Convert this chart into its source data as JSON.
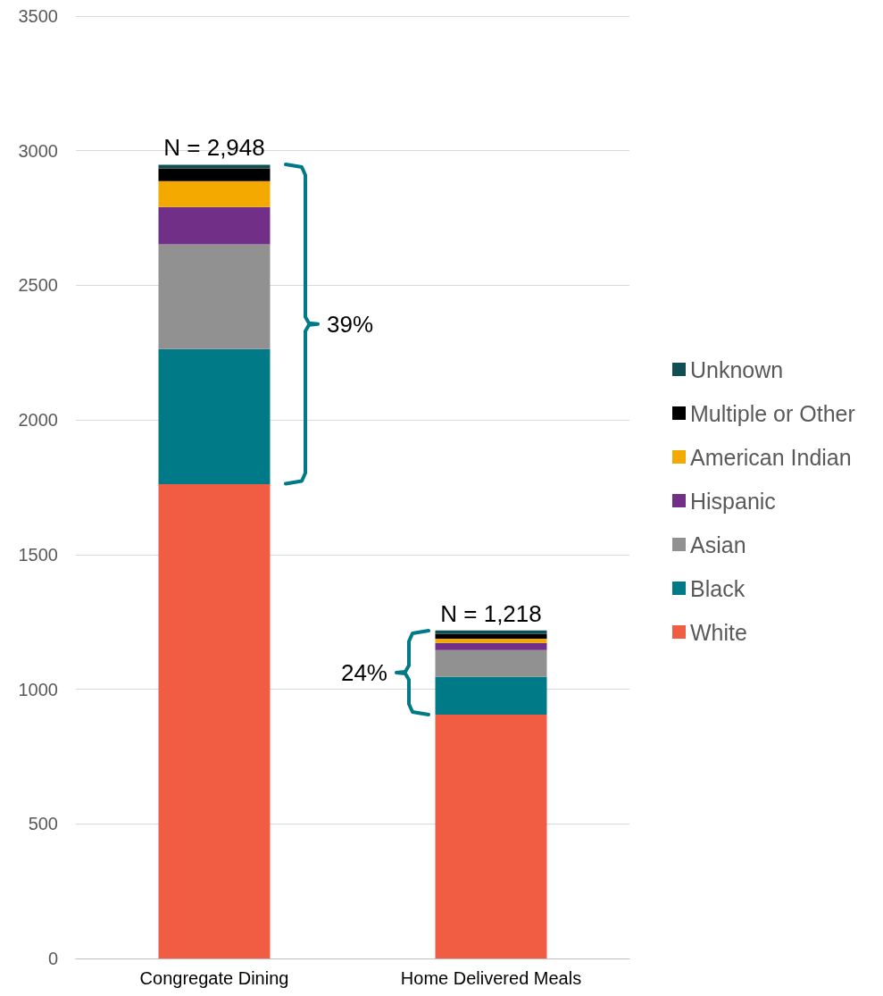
{
  "chart_data": {
    "type": "bar",
    "stacked": true,
    "categories": [
      "Congregate Dining",
      "Home Delivered Meals"
    ],
    "series": [
      {
        "name": "White",
        "color": "#f15d42",
        "values": [
          1762,
          906
        ]
      },
      {
        "name": "Black",
        "color": "#007a87",
        "values": [
          501,
          140
        ]
      },
      {
        "name": "Asian",
        "color": "#919191",
        "values": [
          389,
          99
        ]
      },
      {
        "name": "Hispanic",
        "color": "#712f88",
        "values": [
          139,
          27
        ]
      },
      {
        "name": "American Indian",
        "color": "#f4a900",
        "values": [
          96,
          16
        ]
      },
      {
        "name": "Multiple or Other",
        "color": "#000000",
        "values": [
          47,
          18
        ]
      },
      {
        "name": "Unknown",
        "color": "#0f4e52",
        "values": [
          14,
          12
        ]
      }
    ],
    "totals": [
      "N = 2,948",
      "N = 1,218"
    ],
    "annotations": [
      "39%",
      "24%"
    ],
    "ylim": [
      0,
      3500
    ],
    "yticks": [
      0,
      500,
      1000,
      1500,
      2000,
      2500,
      3000,
      3500
    ],
    "grid": "y",
    "legend": "right"
  }
}
